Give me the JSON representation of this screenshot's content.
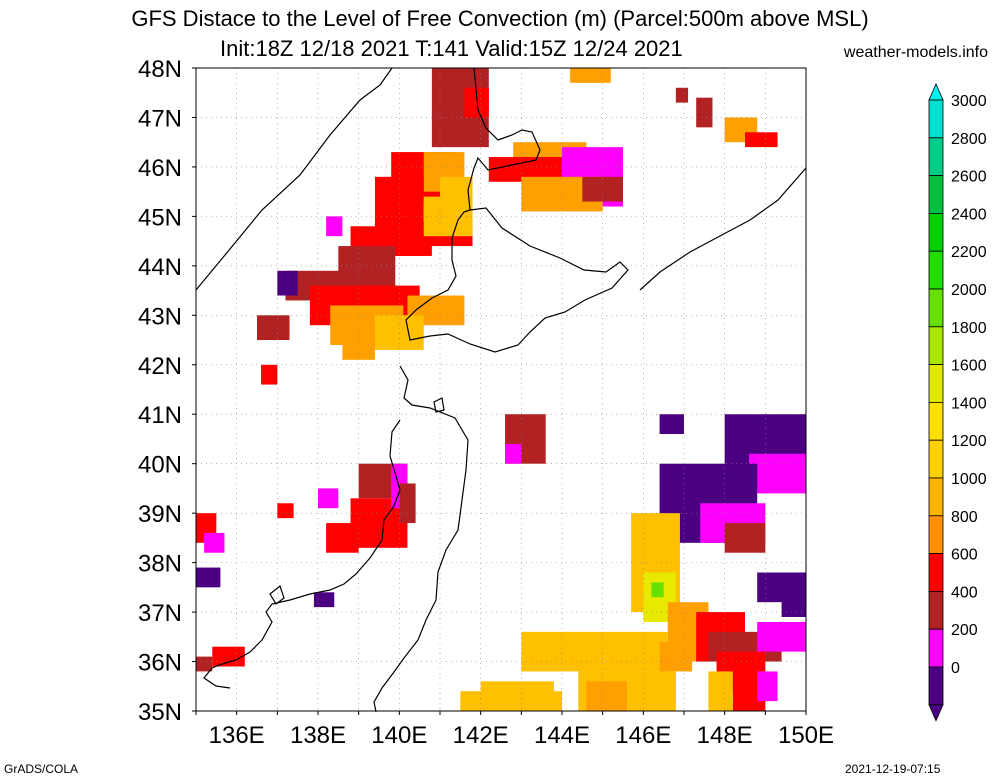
{
  "title_line1": "GFS Distace to the Level of Free Convection (m) (Parcel:500m above MSL)",
  "title_line2": "Init:18Z 12/18 2021 T:141 Valid:15Z 12/24 2021",
  "site": "weather-models.info",
  "footer_left": "GrADS/COLA",
  "footer_right": "2021-12-19-07:15",
  "map": {
    "lat_labels": [
      "48N",
      "47N",
      "46N",
      "45N",
      "44N",
      "43N",
      "42N",
      "41N",
      "40N",
      "39N",
      "38N",
      "37N",
      "36N",
      "35N"
    ],
    "lon_labels": [
      "136E",
      "138E",
      "140E",
      "142E",
      "144E",
      "146E",
      "148E",
      "150E"
    ]
  },
  "colorbar": {
    "labels": [
      "3000",
      "2800",
      "2600",
      "2400",
      "2200",
      "2000",
      "1800",
      "1600",
      "1400",
      "1200",
      "1000",
      "800",
      "600",
      "400",
      "200",
      "0"
    ],
    "colors": [
      "#00e0d0",
      "#00cc8a",
      "#00c040",
      "#00d000",
      "#22dd00",
      "#66e000",
      "#a8e600",
      "#e0e800",
      "#ffe000",
      "#ffd000",
      "#ffb400",
      "#ff9000",
      "#ff0000",
      "#b22222",
      "#ff00ff",
      "#4b0082"
    ],
    "top_color": "#00f0f0",
    "bottom_color": "#4b0082"
  }
}
